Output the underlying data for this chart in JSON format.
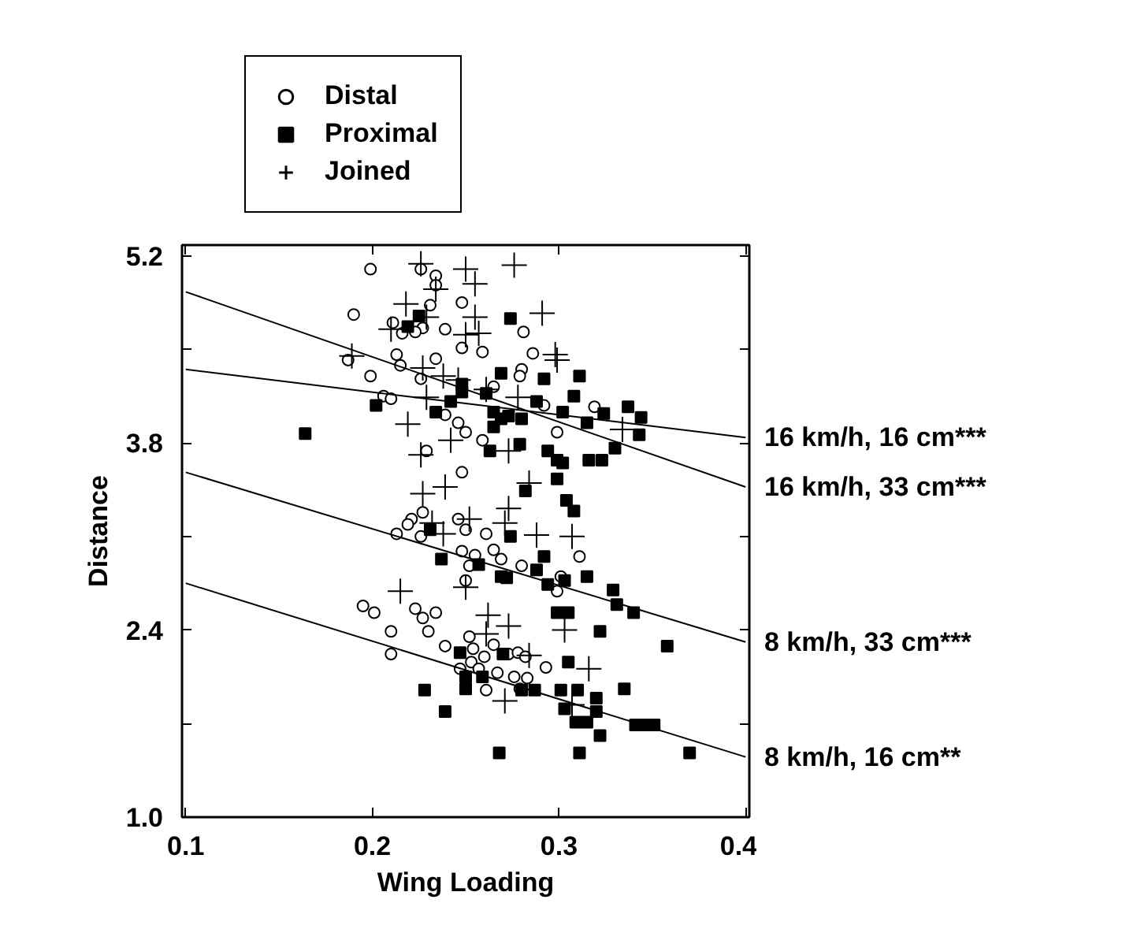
{
  "chart_data": {
    "type": "scatter",
    "xlabel": "Wing Loading",
    "ylabel": "Distance",
    "xlim": [
      0.098,
      0.402
    ],
    "xticks": [
      0.1,
      0.2,
      0.3,
      0.4
    ],
    "ylim": [
      1.0,
      5.28
    ],
    "yticks": [
      {
        "value": 1.0,
        "label": "1.0"
      },
      {
        "value": 1.7,
        "label": null
      },
      2.4,
      {
        "value": 3.1,
        "label": null
      },
      3.8,
      {
        "value": 4.5,
        "label": null
      },
      5.2
    ],
    "grid": false,
    "legend": "top",
    "series": [
      {
        "name": "Distal",
        "color": "#000000",
        "marker": "circle",
        "x": [
          0.199,
          0.226,
          0.234,
          0.234,
          0.19,
          0.231,
          0.248,
          0.227,
          0.211,
          0.216,
          0.223,
          0.239,
          0.281,
          0.248,
          0.259,
          0.286,
          0.187,
          0.199,
          0.213,
          0.215,
          0.234,
          0.28,
          0.279,
          0.206,
          0.21,
          0.226,
          0.265,
          0.292,
          0.319,
          0.239,
          0.246,
          0.25,
          0.299,
          0.259,
          0.229,
          0.248,
          0.221,
          0.219,
          0.227,
          0.213,
          0.226,
          0.246,
          0.25,
          0.261,
          0.248,
          0.255,
          0.265,
          0.269,
          0.28,
          0.311,
          0.301,
          0.299,
          0.25,
          0.252,
          0.195,
          0.201,
          0.223,
          0.227,
          0.234,
          0.21,
          0.23,
          0.21,
          0.239,
          0.252,
          0.254,
          0.253,
          0.26,
          0.265,
          0.273,
          0.278,
          0.282,
          0.247,
          0.257,
          0.267,
          0.276,
          0.283,
          0.261,
          0.279,
          0.293
        ],
        "values": [
          5.1,
          5.1,
          5.05,
          4.98,
          4.76,
          4.83,
          4.85,
          4.66,
          4.7,
          4.62,
          4.63,
          4.65,
          4.63,
          4.51,
          4.48,
          4.47,
          4.42,
          4.3,
          4.46,
          4.38,
          4.43,
          4.35,
          4.3,
          4.15,
          4.13,
          4.28,
          4.22,
          4.08,
          4.07,
          4.01,
          3.95,
          3.88,
          3.88,
          3.82,
          3.74,
          3.58,
          3.23,
          3.19,
          3.28,
          3.12,
          3.1,
          3.23,
          3.15,
          3.12,
          2.99,
          2.96,
          3.0,
          2.93,
          2.88,
          2.95,
          2.8,
          2.69,
          2.77,
          2.88,
          2.58,
          2.53,
          2.56,
          2.49,
          2.53,
          2.39,
          2.39,
          2.22,
          2.28,
          2.35,
          2.26,
          2.16,
          2.2,
          2.29,
          2.22,
          2.23,
          2.2,
          2.11,
          2.11,
          2.08,
          2.05,
          2.04,
          1.95,
          1.96,
          2.12
        ]
      },
      {
        "name": "Proximal",
        "color": "#000000",
        "marker": "square",
        "x": [
          0.274,
          0.225,
          0.219,
          0.292,
          0.311,
          0.202,
          0.234,
          0.242,
          0.248,
          0.248,
          0.261,
          0.269,
          0.265,
          0.273,
          0.269,
          0.28,
          0.288,
          0.302,
          0.308,
          0.315,
          0.324,
          0.337,
          0.344,
          0.343,
          0.33,
          0.316,
          0.323,
          0.294,
          0.299,
          0.302,
          0.279,
          0.263,
          0.265,
          0.282,
          0.299,
          0.304,
          0.308,
          0.164,
          0.231,
          0.237,
          0.257,
          0.269,
          0.272,
          0.274,
          0.292,
          0.288,
          0.294,
          0.303,
          0.315,
          0.329,
          0.331,
          0.34,
          0.299,
          0.305,
          0.322,
          0.358,
          0.247,
          0.25,
          0.259,
          0.27,
          0.228,
          0.239,
          0.25,
          0.28,
          0.287,
          0.301,
          0.305,
          0.31,
          0.32,
          0.335,
          0.303,
          0.309,
          0.315,
          0.32,
          0.322,
          0.311,
          0.268,
          0.341,
          0.346,
          0.351,
          0.37
        ],
        "values": [
          4.73,
          4.75,
          4.67,
          4.28,
          4.3,
          4.08,
          4.03,
          4.11,
          4.18,
          4.24,
          4.17,
          4.32,
          4.03,
          4.0,
          3.98,
          3.98,
          4.11,
          4.03,
          4.15,
          3.95,
          4.02,
          4.07,
          3.99,
          3.86,
          3.76,
          3.67,
          3.67,
          3.74,
          3.67,
          3.65,
          3.79,
          3.74,
          3.92,
          3.44,
          3.53,
          3.37,
          3.29,
          3.87,
          3.15,
          2.93,
          2.89,
          2.8,
          2.79,
          3.1,
          2.95,
          2.85,
          2.74,
          2.77,
          2.8,
          2.7,
          2.59,
          2.53,
          2.53,
          2.53,
          2.39,
          2.28,
          2.23,
          2.05,
          2.05,
          2.22,
          1.95,
          1.79,
          1.96,
          1.95,
          1.95,
          1.95,
          2.16,
          1.95,
          1.89,
          1.96,
          1.81,
          1.71,
          1.71,
          1.79,
          1.61,
          1.48,
          1.48,
          1.69,
          1.69,
          1.69,
          1.48
        ]
      },
      {
        "name": "Joined",
        "color": "#000000",
        "marker": "cross",
        "x": [
          0.226,
          0.25,
          0.255,
          0.276,
          0.234,
          0.218,
          0.291,
          0.229,
          0.21,
          0.255,
          0.25,
          0.257,
          0.189,
          0.298,
          0.299,
          0.227,
          0.238,
          0.246,
          0.261,
          0.229,
          0.278,
          0.219,
          0.242,
          0.273,
          0.226,
          0.334,
          0.284,
          0.227,
          0.239,
          0.273,
          0.252,
          0.271,
          0.307,
          0.288,
          0.238,
          0.232,
          0.215,
          0.25,
          0.262,
          0.273,
          0.303,
          0.316,
          0.271,
          0.307,
          0.261,
          0.284
        ],
        "values": [
          5.14,
          5.1,
          4.99,
          5.13,
          4.95,
          4.84,
          4.77,
          4.74,
          4.65,
          4.74,
          4.61,
          4.62,
          4.45,
          4.46,
          4.42,
          4.36,
          4.3,
          4.27,
          4.2,
          4.14,
          4.14,
          3.94,
          3.82,
          3.74,
          3.71,
          3.9,
          3.5,
          3.42,
          3.47,
          3.31,
          3.23,
          3.2,
          3.1,
          3.11,
          3.12,
          3.2,
          2.69,
          2.72,
          2.51,
          2.43,
          2.4,
          2.11,
          1.87,
          1.84,
          2.37,
          2.21
        ]
      },
      {
        "name": "16 km/h, 16 cm***",
        "type": "line",
        "color": "#000000",
        "x": [
          0.1,
          0.4
        ],
        "values": [
          4.35,
          3.84
        ]
      },
      {
        "name": "16 km/h, 33 cm***",
        "type": "line",
        "color": "#000000",
        "x": [
          0.1,
          0.4
        ],
        "values": [
          4.93,
          3.47
        ]
      },
      {
        "name": "8 km/h, 33 cm***",
        "type": "line",
        "color": "#000000",
        "x": [
          0.1,
          0.4
        ],
        "values": [
          3.58,
          2.31
        ]
      },
      {
        "name": "8 km/h, 16 cm**",
        "type": "line",
        "color": "#000000",
        "x": [
          0.1,
          0.4
        ],
        "values": [
          2.75,
          1.45
        ]
      }
    ]
  }
}
